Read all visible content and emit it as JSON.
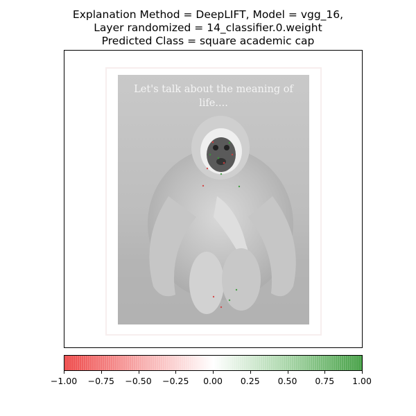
{
  "title": {
    "line1": "Explanation Method = DeepLIFT, Model = vgg_16,",
    "line2": "Layer randomized = 14_classifier.0.weight",
    "line3": "Predicted Class = square academic cap"
  },
  "image": {
    "caption_line1": "Let's talk about the meaning of",
    "caption_line2": "life....",
    "subject": "gibbon photo with attribution overlay"
  },
  "chart_data": {
    "type": "heatmap",
    "title": "Explanation Method = DeepLIFT, Model = vgg_16, Layer randomized = 14_classifier.0.weight Predicted Class = square academic cap",
    "colorbar": {
      "range": [
        -1.0,
        1.0
      ],
      "ticks": [
        -1.0,
        -0.75,
        -0.5,
        -0.25,
        0.0,
        0.25,
        0.5,
        0.75,
        1.0
      ],
      "tick_labels": [
        "−1.00",
        "−0.75",
        "−0.50",
        "−0.25",
        "0.00",
        "0.25",
        "0.50",
        "0.75",
        "1.00"
      ],
      "colors": {
        "negative": "#ee4848",
        "zero": "#ffffff",
        "positive": "#45a045"
      }
    }
  }
}
